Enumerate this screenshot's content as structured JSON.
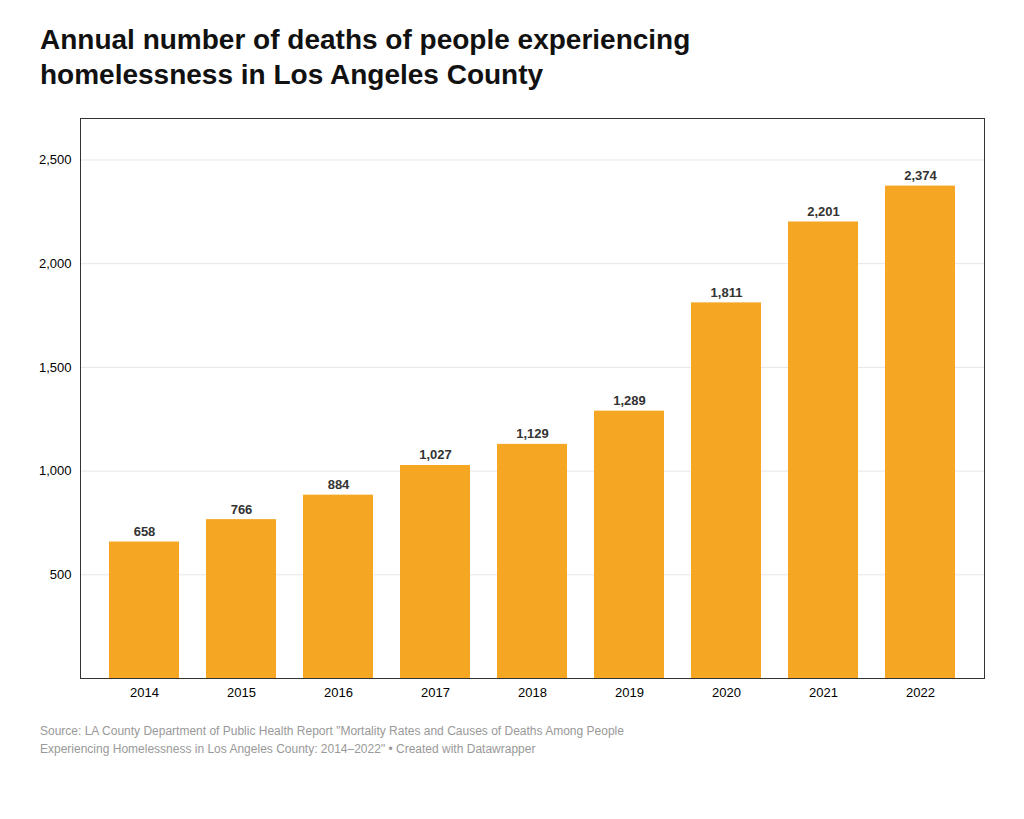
{
  "chart_data": {
    "type": "bar",
    "title": "Annual number of deaths of people experiencing\nhomelessness in Los Angeles County",
    "categories": [
      "2014",
      "2015",
      "2016",
      "2017",
      "2018",
      "2019",
      "2020",
      "2021",
      "2022"
    ],
    "values": [
      658,
      766,
      884,
      1027,
      1129,
      1289,
      1811,
      2201,
      2374
    ],
    "value_labels": [
      "658",
      "766",
      "884",
      "1,027",
      "1,129",
      "1,289",
      "1,811",
      "2,201",
      "2,374"
    ],
    "data_labels": true,
    "color": "#F5A623",
    "ylim": [
      0,
      2700
    ],
    "yticks": [
      500,
      {
        "value": 1000,
        "label": "1,000"
      },
      {
        "value": 1500,
        "label": "1,500"
      },
      {
        "value": 2000,
        "label": "2,000"
      },
      {
        "value": 2500,
        "label": "2,500"
      }
    ],
    "grid": true,
    "source": "Source: LA County Department of Public Health Report \"Mortality Rates and Causes of Deaths Among People\nExperiencing Homelessness in Los Angeles County: 2014–2022\" • Created with Datawrapper"
  }
}
